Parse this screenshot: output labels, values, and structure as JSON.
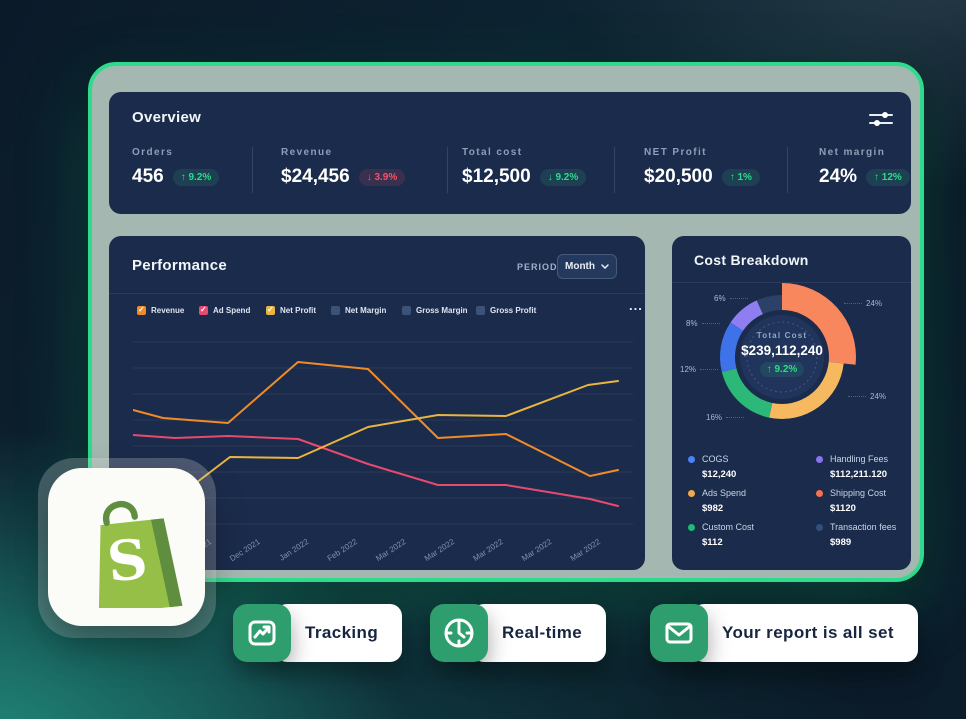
{
  "overview": {
    "title": "Overview",
    "kpis": [
      {
        "label": "Orders",
        "value": "456",
        "delta": "↑ 9.2%",
        "tone": "positive"
      },
      {
        "label": "Revenue",
        "value": "$24,456",
        "delta": "↓ 3.9%",
        "tone": "negative"
      },
      {
        "label": "Total cost",
        "value": "$12,500",
        "delta": "↓ 9.2%",
        "tone": "positive"
      },
      {
        "label": "NET Profit",
        "value": "$20,500",
        "delta": "↑ 1%",
        "tone": "positive"
      },
      {
        "label": "Net margin",
        "value": "24%",
        "delta": "↑ 12%",
        "tone": "positive"
      }
    ]
  },
  "performance": {
    "title": "Performance",
    "period_label": "PERIOD",
    "period_value": "Month",
    "more_label": "...",
    "legend": [
      {
        "label": "Revenue",
        "color": "#f08c28",
        "checked": true
      },
      {
        "label": "Ad Spend",
        "color": "#e84a6f",
        "checked": true
      },
      {
        "label": "Net Profit",
        "color": "#eab53e",
        "checked": true
      },
      {
        "label": "Net Margin",
        "color": "#3c5378",
        "checked": false
      },
      {
        "label": "Gross Margin",
        "color": "#3c5378",
        "checked": false
      },
      {
        "label": "Gross Profit",
        "color": "#3c5378",
        "checked": false
      }
    ]
  },
  "chart_data": [
    {
      "type": "line",
      "title": "Performance",
      "x_categories": [
        "Dec 2021",
        "Dec 2021",
        "Jan 2022",
        "Feb 2022",
        "Mar 2022",
        "Mar 2022",
        "Mar 2022",
        "Mar 2022",
        "Mar 2022"
      ],
      "ylabel": "",
      "y_axis_note": "no numeric y-axis shown; points are plot coordinates, y inverted, plot 485x190",
      "grid": "horizontal, 8 lines",
      "legend_position": "top",
      "series": [
        {
          "name": "Revenue",
          "color": "#f08c28",
          "points": [
            [
              0,
              74
            ],
            [
              30,
              82
            ],
            [
              95,
              87
            ],
            [
              165,
              26
            ],
            [
              235,
              33
            ],
            [
              305,
              102
            ],
            [
              373,
              98
            ],
            [
              457,
              140
            ],
            [
              485,
              134
            ]
          ]
        },
        {
          "name": "Ad Spend",
          "color": "#e84a6f",
          "points": [
            [
              0,
              99
            ],
            [
              42,
              102
            ],
            [
              95,
              100
            ],
            [
              165,
              103
            ],
            [
              235,
              128
            ],
            [
              305,
              149
            ],
            [
              373,
              149
            ],
            [
              457,
              163
            ],
            [
              485,
              170
            ]
          ]
        },
        {
          "name": "Net Profit",
          "color": "#eab53e",
          "points": [
            [
              55,
              153
            ],
            [
              97,
              121
            ],
            [
              165,
              122
            ],
            [
              235,
              91
            ],
            [
              305,
              79
            ],
            [
              373,
              80
            ],
            [
              455,
              49
            ],
            [
              485,
              45
            ]
          ]
        }
      ]
    },
    {
      "type": "donut",
      "title": "Cost Breakdown",
      "center": {
        "label": "Total Cost",
        "value": "$239,112,240",
        "delta": "↑ 9.2%"
      },
      "slices": [
        {
          "label": "24%",
          "value": 24,
          "color": "#f9875e",
          "exploded": true
        },
        {
          "label": "24%",
          "value": 24,
          "color": "#f6b95f",
          "exploded": false
        },
        {
          "label": "16%",
          "value": 16,
          "color": "#2cb878",
          "exploded": false
        },
        {
          "label": "12%",
          "value": 12,
          "color": "#3e72e8",
          "exploded": false
        },
        {
          "label": "8%",
          "value": 8,
          "color": "#8f7ef2",
          "exploded": false
        },
        {
          "label": "6%",
          "value": 6,
          "color": "#2c4168",
          "exploded": false
        }
      ]
    }
  ],
  "cost_breakdown": {
    "title": "Cost Breakdown",
    "legend": [
      {
        "label": "COGS",
        "value": "$12,240",
        "color": "#4c82f7"
      },
      {
        "label": "Handling Fees",
        "value": "$112,211.120",
        "color": "#8b72f2"
      },
      {
        "label": "Ads Spend",
        "value": "$982",
        "color": "#f0a94e"
      },
      {
        "label": "Shipping Cost",
        "value": "$1120",
        "color": "#f4724d"
      },
      {
        "label": "Custom Cost",
        "value": "$112",
        "color": "#1fb978"
      },
      {
        "label": "Transaction fees",
        "value": "$989",
        "color": "#33507c"
      }
    ]
  },
  "badges": [
    {
      "label": "Tracking",
      "icon": "line-chart-icon"
    },
    {
      "label": "Real-time",
      "icon": "clock-icon"
    },
    {
      "label": "Your report is all set",
      "icon": "email-icon"
    }
  ],
  "logo": {
    "brand": "Shopify",
    "letter": "S"
  },
  "colors": {
    "accent_green": "#2edb8c",
    "frame_fill": "#a4b7b1",
    "panel_navy": "#1b2b4b",
    "badge_green": "#2f9e6e",
    "positive": "#2edb8c",
    "negative": "#f4516c"
  }
}
